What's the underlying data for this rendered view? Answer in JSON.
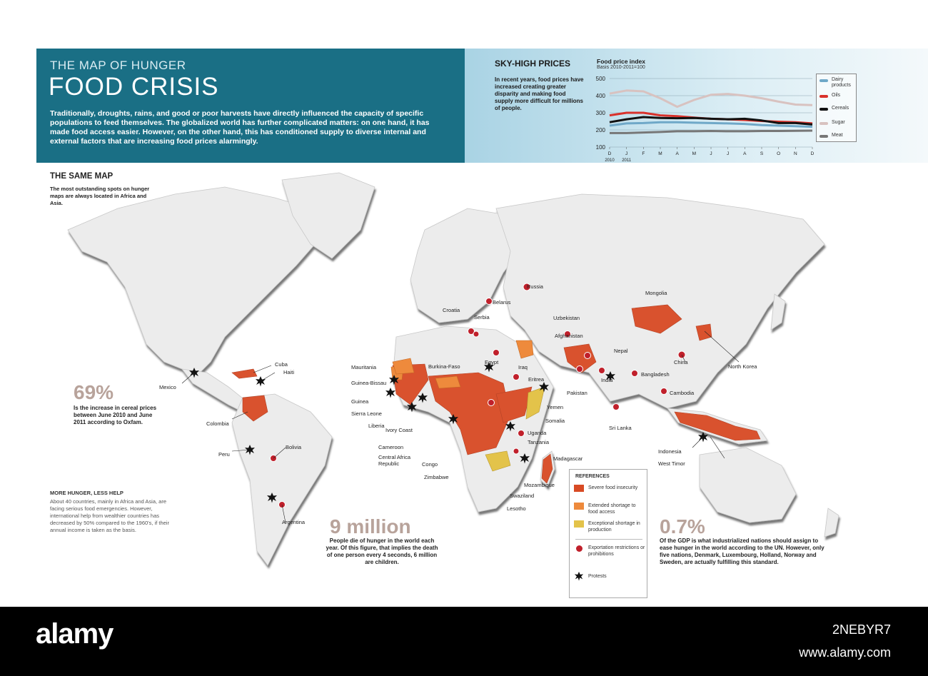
{
  "header": {
    "kicker": "THE MAP OF HUNGER",
    "title": "FOOD CRISIS",
    "intro": "Traditionally, droughts, rains, and good or poor harvests have directly influenced the capacity of specific populations to feed themselves. The globalized world has further complicated matters: on one hand, it has made food access easier. However, on the other hand, this has conditioned supply to diverse internal and external factors that are increasing food prices alarmingly."
  },
  "prices": {
    "title": "SKY-HIGH PRICES",
    "text": "In recent years, food prices have increased creating greater disparity and making food supply more difficult for millions of people."
  },
  "chart_data": {
    "type": "line",
    "title": "Food price index",
    "subtitle": "Basis 2010-2011=100",
    "x": [
      "D",
      "J",
      "F",
      "M",
      "A",
      "M",
      "J",
      "J",
      "A",
      "S",
      "O",
      "N",
      "D"
    ],
    "x_years": [
      "2010",
      "2011"
    ],
    "yticks": [
      100,
      200,
      300,
      400,
      500
    ],
    "ylim": [
      100,
      500
    ],
    "grid": true,
    "legend_position": "right",
    "series": [
      {
        "name": "Dairy products",
        "color": "#6fa8c8",
        "values": [
          225,
          238,
          240,
          245,
          245,
          242,
          240,
          238,
          235,
          228,
          225,
          222,
          218
        ]
      },
      {
        "name": "Oils",
        "color": "#d9312b",
        "values": [
          285,
          300,
          300,
          285,
          280,
          272,
          265,
          262,
          258,
          252,
          248,
          245,
          238
        ]
      },
      {
        "name": "Cereals",
        "color": "#111111",
        "values": [
          245,
          262,
          275,
          270,
          268,
          270,
          265,
          262,
          265,
          255,
          240,
          240,
          232
        ]
      },
      {
        "name": "Sugar",
        "color": "#d8c2c0",
        "values": [
          412,
          430,
          425,
          385,
          335,
          375,
          405,
          410,
          400,
          385,
          365,
          348,
          345
        ]
      },
      {
        "name": "Meat",
        "color": "#777777",
        "values": [
          182,
          182,
          185,
          188,
          192,
          192,
          194,
          192,
          192,
          194,
          194,
          195,
          196
        ]
      }
    ]
  },
  "map_section": {
    "title": "THE SAME MAP",
    "text": "The most outstanding spots on hunger maps are always located in Africa and Asia."
  },
  "stats": {
    "stat1_value": "69%",
    "stat1_text": "Is the increase in cereal prices between June 2010 and June 2011 according to Oxfam.",
    "stat2_value": "9 million",
    "stat2_text": "People die of hunger in the world each year. Of this figure, that implies the death of one person every 4 seconds, 6 million are children.",
    "stat3_value": "0.7%",
    "stat3_text": "Of the GDP is what industrialized nations should assign to ease hunger in the world according to the UN. However, only five nations, Denmark, Luxembourg, Holland, Norway and Sweden, are actually fulfilling this standard."
  },
  "more_hunger": {
    "title": "MORE HUNGER, LESS HELP",
    "text": "About 40 countries, mainly in Africa and Asia, are facing serious food emergencies. However, international help from wealthier countries has decreased by 50% compared to the 1960's, if their annual income is taken as the basis."
  },
  "references": {
    "title": "REFERENCES",
    "items": [
      {
        "label": "Severe food insecurity",
        "color": "#d84a24"
      },
      {
        "label": "Extended shortage to food access",
        "color": "#ee8a3c"
      },
      {
        "label": "Exceptional shortage in production",
        "color": "#e3c34a"
      },
      {
        "label": "Exportation restrictions or prohibitions",
        "color": "#c0202b"
      },
      {
        "label": "Protests",
        "color": "#111111"
      }
    ]
  },
  "countries": {
    "russia": "Russia",
    "belarus": "Belarus",
    "croatia": "Croatia",
    "serbia": "Serbia",
    "mongolia": "Mongolia",
    "uzbekistan": "Uzbekistan",
    "afghanistan": "Afghanistan",
    "nepal": "Nepal",
    "china": "China",
    "north_korea": "North Korea",
    "iraq": "Iraq",
    "egypt": "Egypt",
    "eritrea": "Eritrea",
    "yemen": "Yemen",
    "somalia": "Somalia",
    "pakistan": "Pakistan",
    "india": "India",
    "bangladesh": "Bangladesh",
    "cambodia": "Cambodia",
    "sri_lanka": "Sri Lanka",
    "indonesia": "Indonesia",
    "west_timor": "West Timor",
    "mauritania": "Mauritania",
    "burkina_faso": "Burkina-Faso",
    "guinea_bissau": "Guinea-Bissau",
    "guinea": "Guinea",
    "sierra_leone": "Sierra Leone",
    "liberia": "Liberia",
    "ivory_coast": "Ivory Coast",
    "cameroon": "Cameroon",
    "central_africa": "Central Africa Republic",
    "congo": "Congo",
    "zimbabwe": "Zimbabwe",
    "uganda": "Uganda",
    "tanzania": "Tanzania",
    "madagascar": "Madagascar",
    "mozambique": "Mozambique",
    "swaziland": "Swaziland",
    "lesotho": "Lesotho",
    "mexico": "Mexico",
    "cuba": "Cuba",
    "haiti": "Haiti",
    "colombia": "Colombia",
    "peru": "Peru",
    "bolivia": "Bolivia",
    "argentina": "Argentina"
  },
  "footer": {
    "logo": "alamy",
    "image_id": "2NEBYR7",
    "url": "www.alamy.com"
  }
}
